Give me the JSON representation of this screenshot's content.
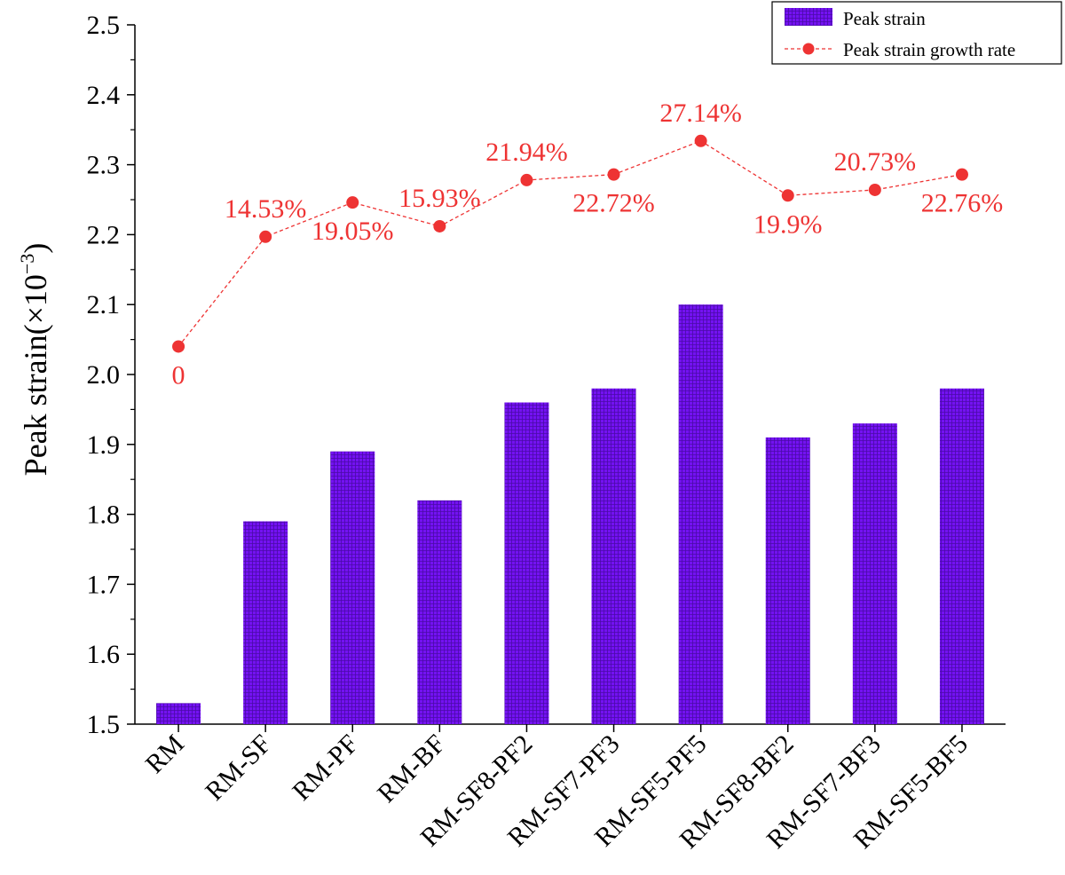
{
  "chart_data": {
    "type": "bar",
    "title": "",
    "xlabel": "",
    "ylabel": "Peak strain(×10",
    "ylabel_exponent": "−3",
    "ylabel_close": ")",
    "ylim": [
      1.5,
      2.5
    ],
    "ytick_step": 0.1,
    "yticks": [
      "1.5",
      "1.6",
      "1.7",
      "1.8",
      "1.9",
      "2.0",
      "2.1",
      "2.2",
      "2.3",
      "2.4",
      "2.5"
    ],
    "categories": [
      "RM",
      "RM-SF",
      "RM-PF",
      "RM-BF",
      "RM-SF8-PF2",
      "RM-SF7-PF3",
      "RM-SF5-PF5",
      "RM-SF8-BF2",
      "RM-SF7-BF3",
      "RM-SF5-BF5"
    ],
    "series": [
      {
        "name": "Peak strain",
        "type": "bar",
        "color": "#7010f0",
        "values": [
          1.53,
          1.79,
          1.89,
          1.82,
          1.96,
          1.98,
          2.1,
          1.91,
          1.93,
          1.98
        ]
      },
      {
        "name": "Peak strain growth rate",
        "type": "line",
        "color": "#ee3333",
        "axis_values_left_scale": [
          2.04,
          2.197,
          2.246,
          2.212,
          2.278,
          2.286,
          2.334,
          2.256,
          2.264,
          2.286
        ],
        "rates_percent": [
          0,
          14.53,
          19.05,
          15.93,
          21.94,
          22.72,
          27.14,
          19.9,
          20.73,
          22.76
        ],
        "labels": [
          "0",
          "14.53%",
          "19.05%",
          "15.93%",
          "21.94%",
          "22.72%",
          "27.14%",
          "19.9%",
          "20.73%",
          "22.76%"
        ],
        "label_positions": [
          "below",
          "above",
          "below",
          "above",
          "above",
          "below",
          "above",
          "below",
          "above",
          "below"
        ]
      }
    ],
    "legend": {
      "placement": "top-right",
      "entries": [
        "Peak strain",
        "Peak strain growth rate"
      ]
    },
    "grid": false
  }
}
